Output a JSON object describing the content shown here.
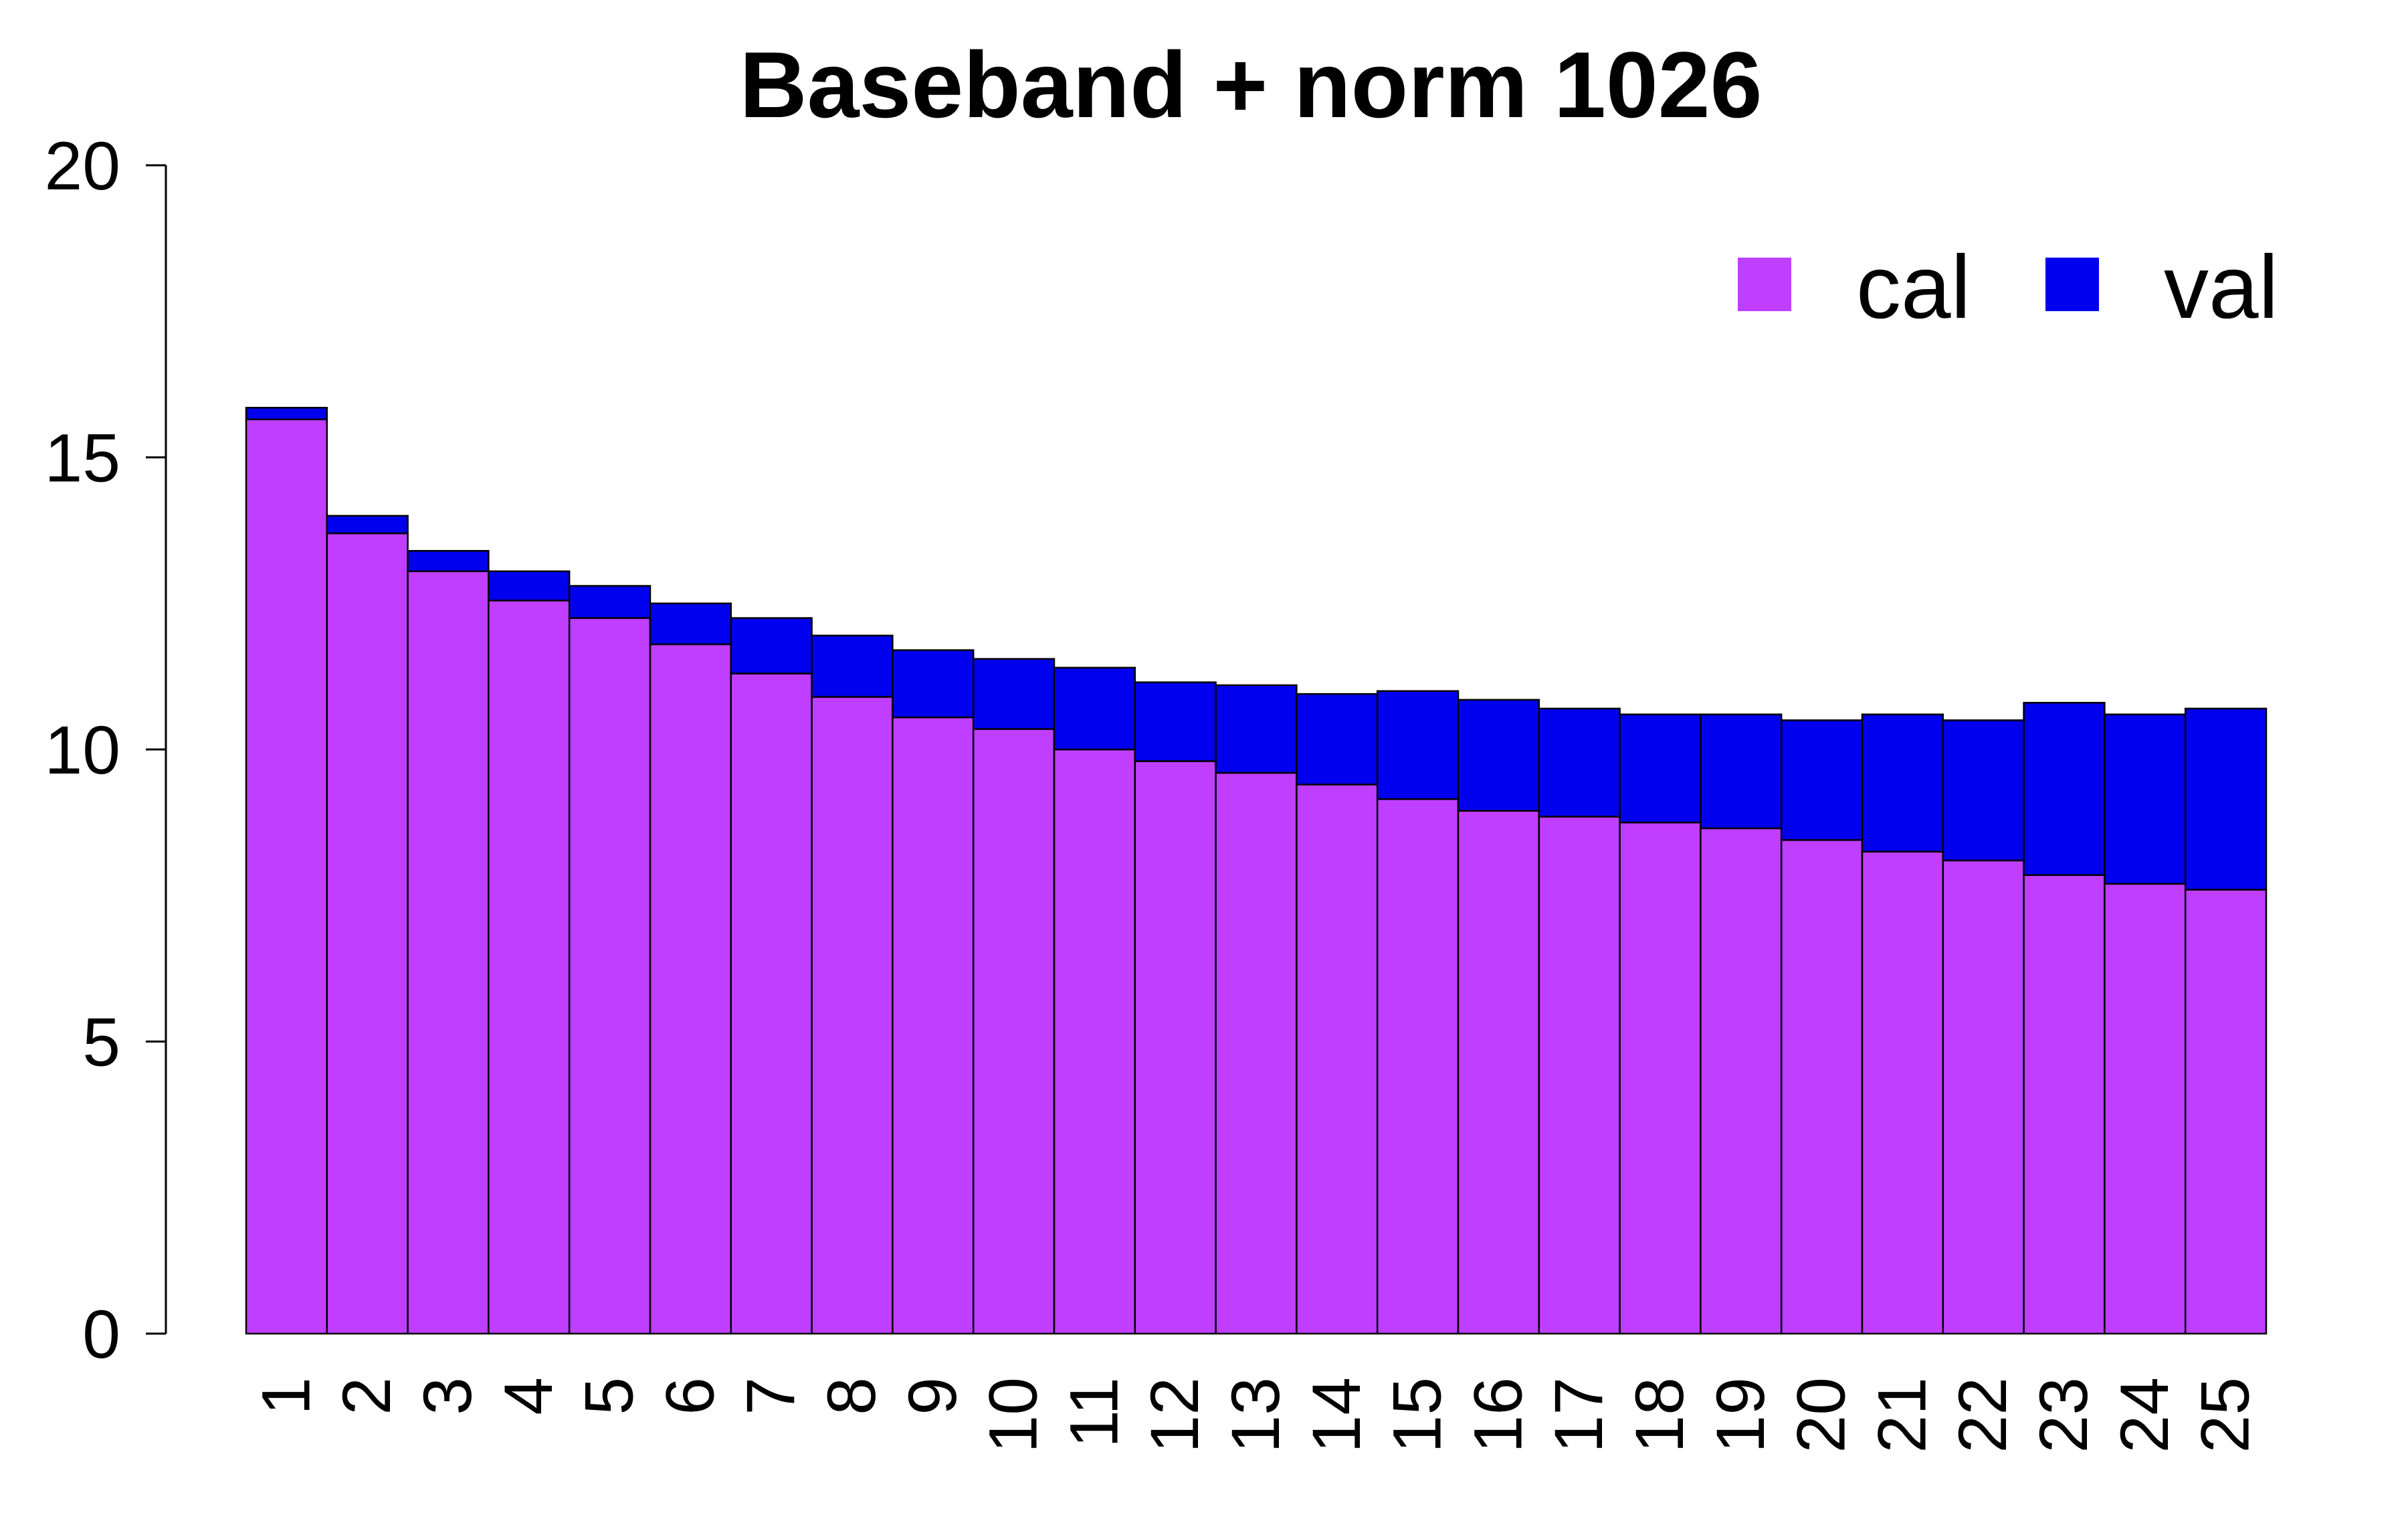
{
  "chart_data": {
    "type": "bar",
    "stacked": true,
    "title": "Baseband + norm 1026",
    "xlabel": "",
    "ylabel": "",
    "ylim": [
      0,
      20
    ],
    "yticks": [
      "0",
      "5",
      "10",
      "15",
      "20"
    ],
    "categories": [
      "1",
      "2",
      "3",
      "4",
      "5",
      "6",
      "7",
      "8",
      "9",
      "10",
      "11",
      "12",
      "13",
      "14",
      "15",
      "16",
      "17",
      "18",
      "19",
      "20",
      "21",
      "22",
      "23",
      "24",
      "25"
    ],
    "series": [
      {
        "name": "cal",
        "color": "#bf3eff",
        "values": [
          15.65,
          13.7,
          13.05,
          12.55,
          12.25,
          11.8,
          11.3,
          10.9,
          10.55,
          10.35,
          10.0,
          9.8,
          9.6,
          9.4,
          9.15,
          8.95,
          8.85,
          8.75,
          8.65,
          8.45,
          8.25,
          8.1,
          7.85,
          7.7,
          7.6
        ]
      },
      {
        "name": "val",
        "color": "#0000ee",
        "values": [
          0.2,
          0.3,
          0.35,
          0.5,
          0.55,
          0.7,
          0.95,
          1.05,
          1.15,
          1.2,
          1.4,
          1.35,
          1.5,
          1.55,
          1.85,
          1.9,
          1.85,
          1.85,
          1.95,
          2.05,
          2.35,
          2.4,
          2.95,
          2.9,
          3.1
        ]
      }
    ],
    "legend": {
      "position": "top-right",
      "entries": [
        "cal",
        "val"
      ]
    },
    "grid": false
  }
}
